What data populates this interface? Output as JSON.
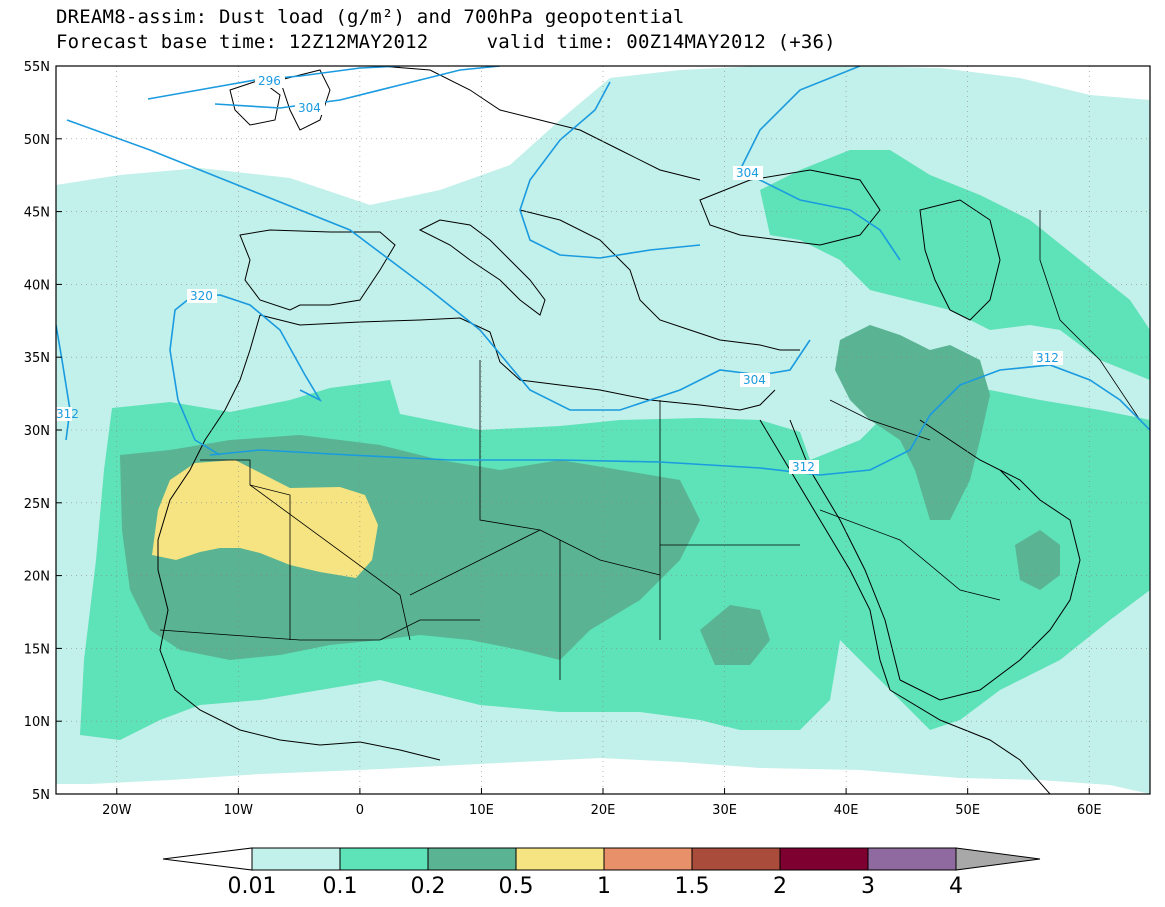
{
  "title": {
    "line1": "DREAM8-assim: Dust load (g/m²) and 700hPa geopotential",
    "line2": "Forecast base time: 12Z12MAY2012     valid time: 00Z14MAY2012 (+36)"
  },
  "axes": {
    "lat_labels": [
      "55N",
      "50N",
      "45N",
      "40N",
      "35N",
      "30N",
      "25N",
      "20N",
      "15N",
      "10N",
      "5N"
    ],
    "lon_labels": [
      "20W",
      "10W",
      "0",
      "10E",
      "20E",
      "30E",
      "40E",
      "50E",
      "60E"
    ]
  },
  "contour_labels": [
    "296",
    "304",
    "304",
    "304",
    "320",
    "312",
    "312",
    "312"
  ],
  "colorbar": {
    "labels": [
      "0.01",
      "0.1",
      "0.2",
      "0.5",
      "1",
      "1.5",
      "2",
      "3",
      "4"
    ],
    "colors": [
      "#c2f0ea",
      "#5ee2b8",
      "#5ab392",
      "#f5e481",
      "#e8906a",
      "#aa4c3c",
      "#7e0030",
      "#8f6aa0",
      "#a8a8a8"
    ]
  },
  "colors": {
    "dust_001": "#c2f0ea",
    "dust_01": "#5ee2b8",
    "dust_02": "#5ab392",
    "dust_05": "#f5e481",
    "contour": "#1a9be0",
    "coast": "#000000"
  }
}
